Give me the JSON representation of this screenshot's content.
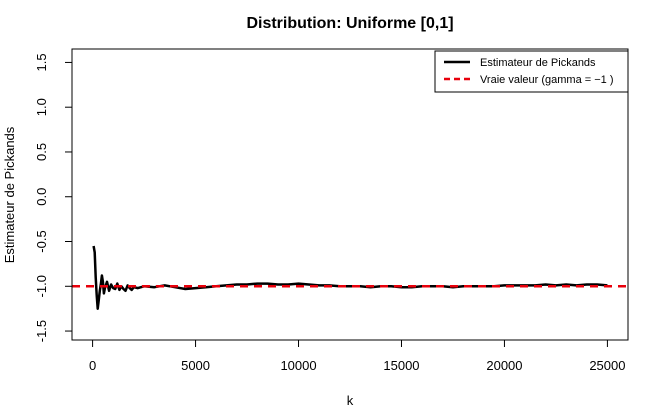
{
  "chart_data": {
    "type": "line",
    "title": "Distribution: Uniforme [0,1]",
    "xlabel": "k",
    "ylabel": "Estimateur de Pickands",
    "xlim": [
      -1000,
      26000
    ],
    "ylim": [
      -1.6,
      1.65
    ],
    "xticks": [
      0,
      5000,
      10000,
      15000,
      20000,
      25000
    ],
    "xtick_labels": [
      "0",
      "5000",
      "10000",
      "15000",
      "20000",
      "25000"
    ],
    "yticks": [
      -1.5,
      -1.0,
      -0.5,
      0.0,
      0.5,
      1.0,
      1.5
    ],
    "ytick_labels": [
      "-1.5",
      "-1.0",
      "-0.5",
      "0.0",
      "0.5",
      "1.0",
      "1.5"
    ],
    "grid": false,
    "legend_position": "top-right",
    "series": [
      {
        "name": "Estimateur de Pickands",
        "color": "#000000",
        "style": "solid",
        "x": [
          50,
          100,
          150,
          200,
          250,
          300,
          350,
          400,
          450,
          500,
          550,
          600,
          700,
          800,
          900,
          1000,
          1100,
          1200,
          1300,
          1400,
          1500,
          1600,
          1700,
          1800,
          1900,
          2000,
          2200,
          2500,
          3000,
          3500,
          4000,
          4500,
          5000,
          5500,
          6000,
          6500,
          7000,
          7500,
          8000,
          8500,
          9000,
          9500,
          10000,
          10500,
          11000,
          11500,
          12000,
          12500,
          13000,
          13500,
          14000,
          14500,
          15000,
          15500,
          16000,
          16500,
          17000,
          17500,
          18000,
          18500,
          19000,
          19500,
          20000,
          20500,
          21000,
          21500,
          22000,
          22500,
          23000,
          23500,
          24000,
          24500,
          25000
        ],
        "y": [
          -0.55,
          -0.62,
          -0.9,
          -1.1,
          -1.25,
          -1.15,
          -1.05,
          -0.98,
          -0.88,
          -0.95,
          -1.08,
          -1.02,
          -0.95,
          -1.05,
          -0.98,
          -1.02,
          -1.03,
          -0.97,
          -1.04,
          -1.0,
          -1.03,
          -1.05,
          -0.99,
          -1.02,
          -1.04,
          -1.01,
          -1.02,
          -1.0,
          -1.01,
          -0.99,
          -1.01,
          -1.03,
          -1.02,
          -1.01,
          -1.0,
          -0.99,
          -0.98,
          -0.98,
          -0.97,
          -0.97,
          -0.98,
          -0.98,
          -0.97,
          -0.98,
          -0.99,
          -0.99,
          -1.0,
          -1.0,
          -1.0,
          -1.01,
          -1.0,
          -1.0,
          -1.01,
          -1.01,
          -1.0,
          -1.0,
          -1.0,
          -1.01,
          -1.0,
          -1.0,
          -1.0,
          -1.0,
          -0.99,
          -0.99,
          -0.99,
          -0.99,
          -0.98,
          -0.99,
          -0.98,
          -0.99,
          -0.98,
          -0.98,
          -0.99
        ]
      },
      {
        "name": "Vraie valeur (gamma = −1 )",
        "color": "#e8000b",
        "style": "dashed",
        "hline": -1.0
      }
    ]
  }
}
